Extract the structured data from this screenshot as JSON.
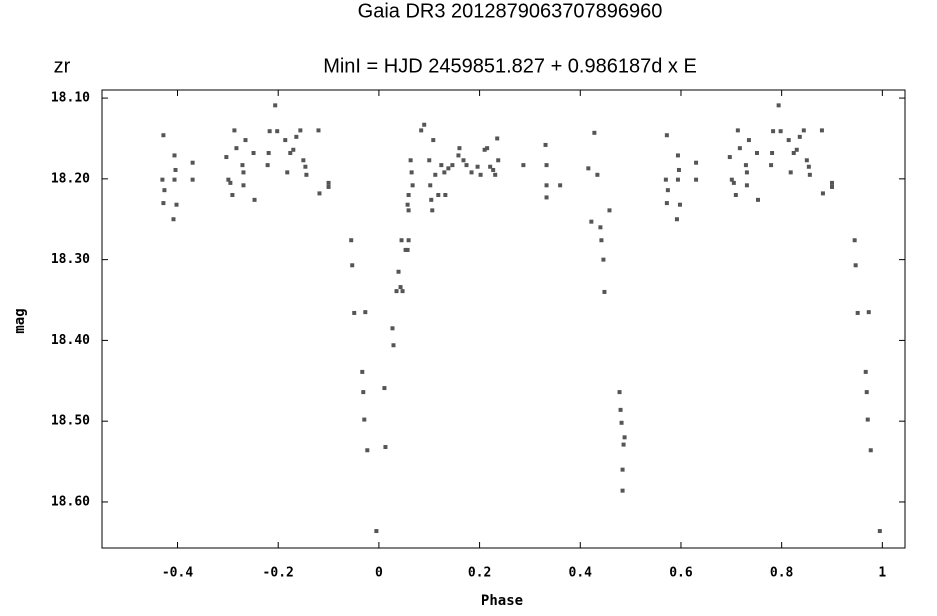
{
  "chart_data": {
    "type": "scatter",
    "title": "Gaia DR3 2012879063707896960",
    "subtitle": "MinI = HJD 2459851.827 + 0.986187d x E",
    "band_label": "zr",
    "xlabel": "Phase",
    "ylabel": "mag",
    "color": "#555555",
    "xlim": [
      -0.55,
      1.045
    ],
    "ylim": [
      18.657,
      18.09
    ],
    "xticks": [
      -0.4,
      -0.2,
      0,
      0.2,
      0.4,
      0.6,
      0.8,
      1
    ],
    "yticks": [
      {
        "value": 18.1,
        "label": "18.10"
      },
      {
        "value": 18.2,
        "label": "18.20"
      },
      {
        "value": 18.3,
        "label": "18.30"
      },
      {
        "value": 18.4,
        "label": "18.40"
      },
      {
        "value": 18.5,
        "label": "18.50"
      },
      {
        "value": 18.6,
        "label": "18.60"
      }
    ],
    "x": [
      -0.428,
      -0.43,
      -0.426,
      -0.428,
      -0.406,
      -0.404,
      -0.406,
      -0.402,
      -0.408,
      -0.37,
      -0.37,
      -0.303,
      -0.299,
      -0.295,
      -0.291,
      -0.287,
      -0.283,
      -0.271,
      -0.269,
      -0.269,
      -0.265,
      -0.249,
      -0.247,
      -0.221,
      -0.219,
      -0.217,
      -0.206,
      -0.202,
      -0.186,
      -0.182,
      -0.176,
      -0.17,
      -0.164,
      -0.156,
      -0.15,
      -0.146,
      -0.144,
      -0.12,
      -0.118,
      -0.1,
      -0.1,
      0.572,
      0.57,
      0.574,
      0.572,
      0.594,
      0.596,
      0.594,
      0.598,
      0.592,
      0.63,
      0.63,
      0.697,
      0.701,
      0.705,
      0.709,
      0.713,
      0.717,
      0.729,
      0.731,
      0.731,
      0.735,
      0.751,
      0.753,
      0.779,
      0.781,
      0.783,
      0.794,
      0.798,
      0.814,
      0.818,
      0.824,
      0.83,
      0.836,
      0.844,
      0.85,
      0.854,
      0.856,
      0.88,
      0.882,
      0.9,
      0.9,
      -0.055,
      -0.053,
      -0.049,
      -0.033,
      -0.031,
      -0.029,
      -0.027,
      -0.023,
      -0.005,
      0.011,
      0.013,
      0.027,
      0.029,
      0.035,
      0.039,
      0.043,
      0.045,
      0.047,
      0.053,
      0.057,
      0.059,
      0.945,
      0.947,
      0.951,
      0.967,
      0.969,
      0.971,
      0.973,
      0.977,
      0.995,
      0.057,
      0.059,
      0.059,
      0.063,
      0.065,
      0.067,
      0.084,
      0.09,
      0.1,
      0.102,
      0.104,
      0.106,
      0.108,
      0.112,
      0.118,
      0.124,
      0.13,
      0.132,
      0.138,
      0.146,
      0.158,
      0.16,
      0.168,
      0.174,
      0.184,
      0.196,
      0.202,
      0.21,
      0.215,
      0.221,
      0.227,
      0.231,
      0.235,
      0.237,
      0.287,
      0.331,
      0.333,
      0.333,
      0.333,
      0.36,
      0.416,
      0.422,
      0.428,
      0.434,
      0.44,
      0.442,
      0.446,
      0.448,
      0.458,
      0.478,
      0.48,
      0.482,
      0.484,
      0.484,
      0.486,
      0.488
    ],
    "values": [
      18.146,
      18.201,
      18.214,
      18.23,
      18.171,
      18.189,
      18.201,
      18.232,
      18.25,
      18.18,
      18.201,
      18.173,
      18.201,
      18.205,
      18.22,
      18.14,
      18.162,
      18.183,
      18.192,
      18.208,
      18.152,
      18.168,
      18.226,
      18.183,
      18.168,
      18.141,
      18.109,
      18.141,
      18.152,
      18.192,
      18.168,
      18.164,
      18.148,
      18.14,
      18.177,
      18.185,
      18.195,
      18.14,
      18.218,
      18.21,
      18.205,
      18.146,
      18.201,
      18.214,
      18.23,
      18.171,
      18.189,
      18.201,
      18.232,
      18.25,
      18.18,
      18.201,
      18.173,
      18.201,
      18.205,
      18.22,
      18.14,
      18.162,
      18.183,
      18.192,
      18.208,
      18.152,
      18.168,
      18.226,
      18.183,
      18.168,
      18.141,
      18.109,
      18.141,
      18.152,
      18.192,
      18.168,
      18.164,
      18.148,
      18.14,
      18.177,
      18.185,
      18.195,
      18.14,
      18.218,
      18.21,
      18.205,
      18.276,
      18.307,
      18.366,
      18.439,
      18.464,
      18.498,
      18.365,
      18.536,
      18.636,
      18.459,
      18.532,
      18.385,
      18.406,
      18.339,
      18.315,
      18.334,
      18.276,
      18.339,
      18.288,
      18.288,
      18.276,
      18.276,
      18.307,
      18.366,
      18.439,
      18.464,
      18.498,
      18.365,
      18.536,
      18.636,
      18.232,
      18.239,
      18.22,
      18.177,
      18.192,
      18.208,
      18.14,
      18.133,
      18.177,
      18.208,
      18.226,
      18.239,
      18.152,
      18.195,
      18.22,
      18.183,
      18.192,
      18.22,
      18.187,
      18.183,
      18.171,
      18.162,
      18.177,
      18.183,
      18.192,
      18.185,
      18.195,
      18.164,
      18.162,
      18.185,
      18.189,
      18.195,
      18.15,
      18.177,
      18.183,
      18.158,
      18.183,
      18.208,
      18.223,
      18.208,
      18.187,
      18.253,
      18.143,
      18.195,
      18.26,
      18.276,
      18.3,
      18.34,
      18.239,
      18.464,
      18.486,
      18.502,
      18.56,
      18.586,
      18.529,
      18.52
    ]
  }
}
